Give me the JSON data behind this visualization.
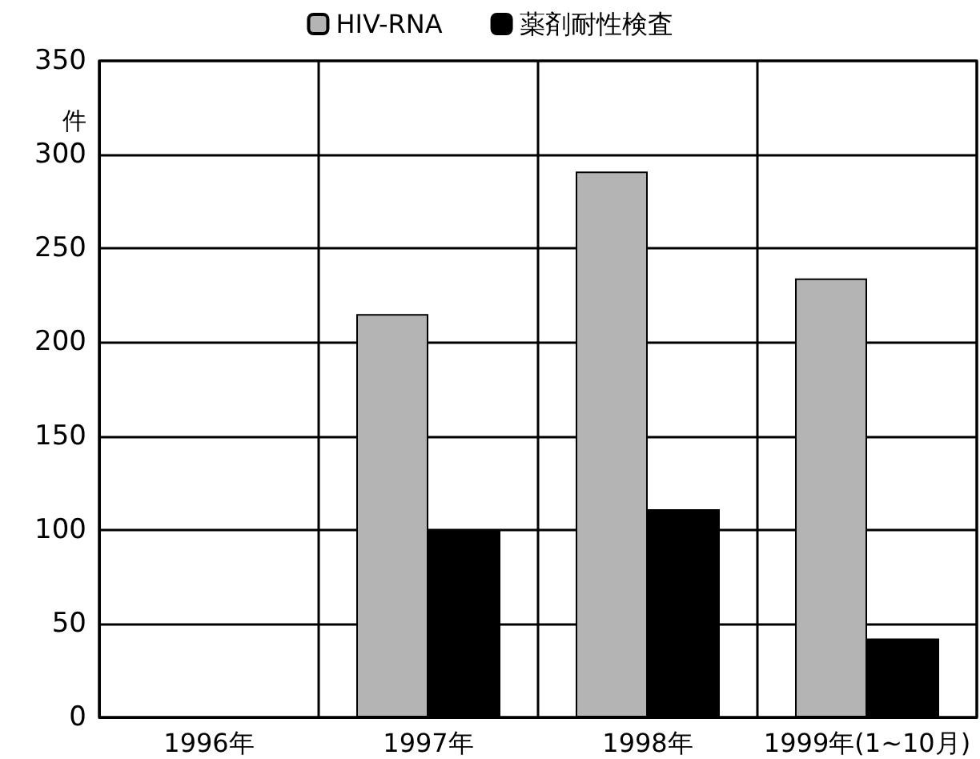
{
  "chart_data": {
    "type": "bar",
    "ylabel": "件",
    "categories": [
      "1996年",
      "1997年",
      "1998年",
      "1999年(1~10月)"
    ],
    "series": [
      {
        "name": "HIV-RNA",
        "color": "#b4b4b4",
        "values": [
          null,
          215,
          291,
          234
        ]
      },
      {
        "name": "薬剤耐性検査",
        "color": "#000000",
        "values": [
          null,
          100,
          111,
          42
        ]
      }
    ],
    "ylim": [
      0,
      350
    ],
    "yticks": [
      0,
      50,
      100,
      150,
      200,
      250,
      300,
      350
    ],
    "grid": true,
    "legend": "top"
  }
}
